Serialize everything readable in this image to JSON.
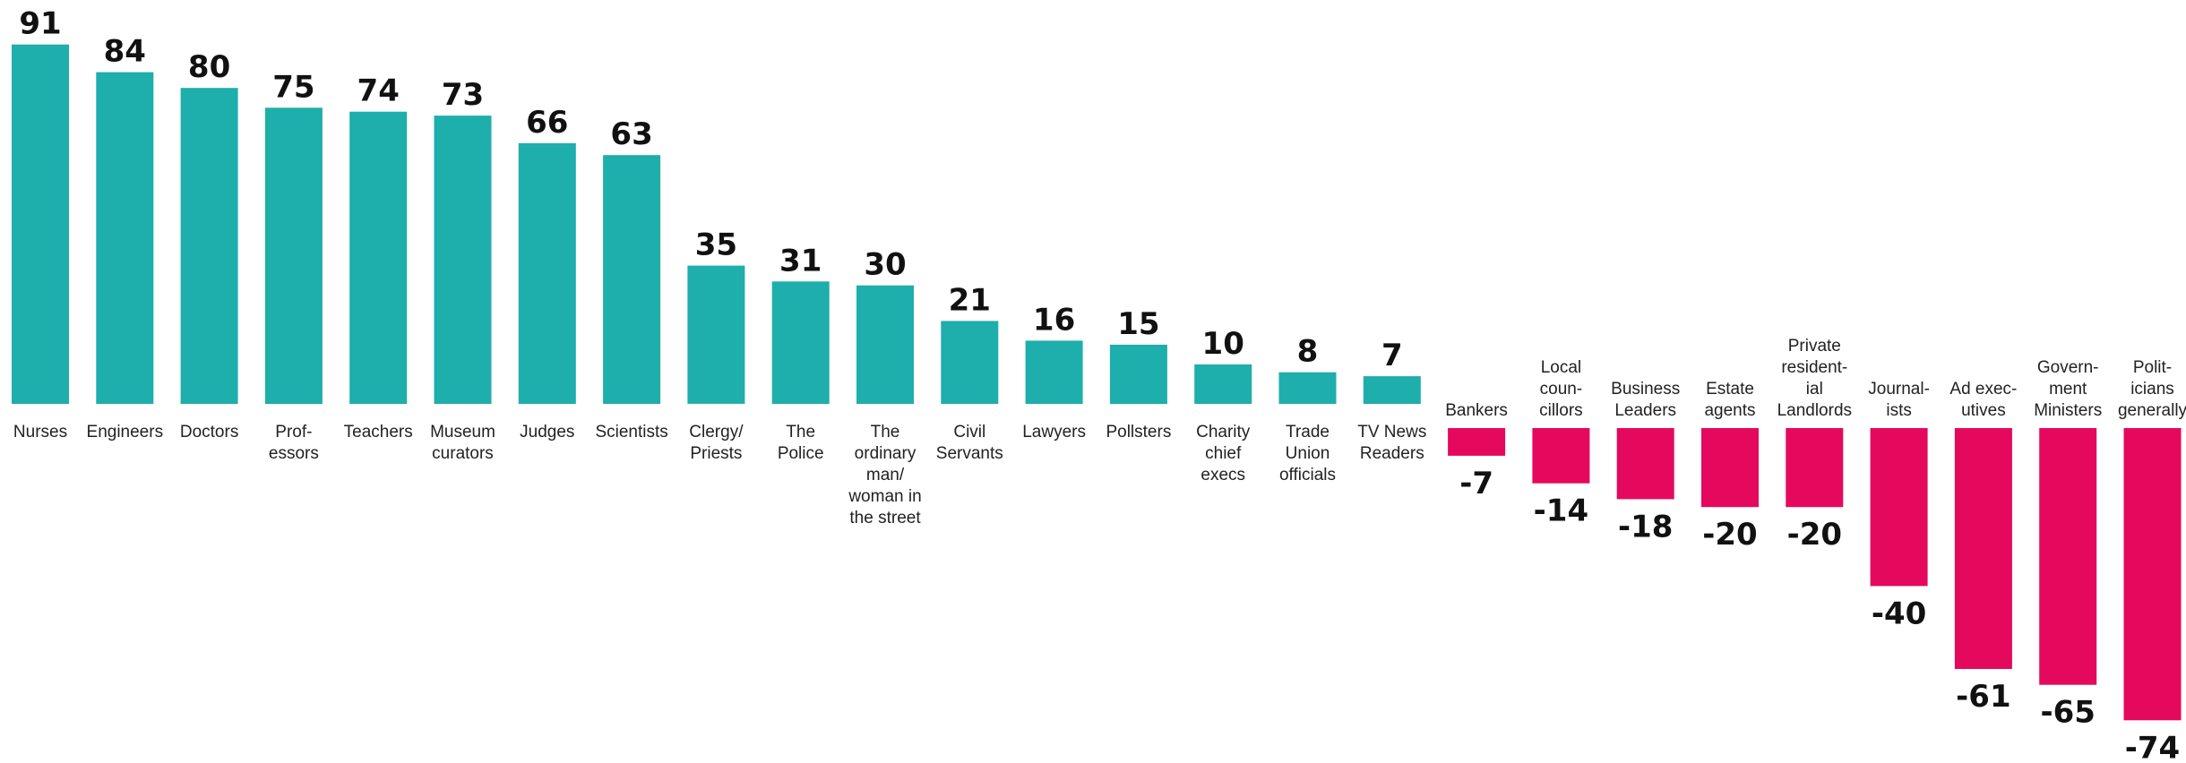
{
  "chart_data": {
    "type": "bar",
    "categories": [
      [
        "Nurses"
      ],
      [
        "Engineers"
      ],
      [
        "Doctors"
      ],
      [
        "Prof-",
        "essors"
      ],
      [
        "Teachers"
      ],
      [
        "Museum",
        "curators"
      ],
      [
        "Judges"
      ],
      [
        "Scientists"
      ],
      [
        "Clergy/",
        "Priests"
      ],
      [
        "The",
        "Police"
      ],
      [
        "The",
        "ordinary",
        "man/",
        "woman in",
        "the street"
      ],
      [
        "Civil",
        "Servants"
      ],
      [
        "Lawyers"
      ],
      [
        "Pollsters"
      ],
      [
        "Charity",
        "chief",
        "execs"
      ],
      [
        "Trade",
        "Union",
        "officials"
      ],
      [
        "TV News",
        "Readers"
      ],
      [
        "Bankers"
      ],
      [
        "Local",
        "coun-",
        "cillors"
      ],
      [
        "Business",
        "Leaders"
      ],
      [
        "Estate",
        "agents"
      ],
      [
        "Private",
        "resident-",
        "ial",
        "Landlords"
      ],
      [
        "Journal-",
        "ists"
      ],
      [
        "Ad exec-",
        "utives"
      ],
      [
        "Govern-",
        "ment",
        "Ministers"
      ],
      [
        "Polit-",
        "icians",
        "generally"
      ]
    ],
    "values": [
      91,
      84,
      80,
      75,
      74,
      73,
      66,
      63,
      35,
      31,
      30,
      21,
      16,
      15,
      10,
      8,
      7,
      -7,
      -14,
      -18,
      -20,
      -20,
      -40,
      -61,
      -65,
      -74
    ],
    "value_labels": [
      "91",
      "84",
      "80",
      "75",
      "74",
      "73",
      "66",
      "63",
      "35",
      "31",
      "30",
      "21",
      "16",
      "15",
      "10",
      "8",
      "7",
      "-7",
      "-14",
      "-18",
      "-20",
      "-20",
      "-40",
      "-61",
      "-65",
      "-74"
    ],
    "title": "",
    "xlabel": "",
    "ylabel": "",
    "grid": false,
    "legend": "none",
    "colors": {
      "positive": "#1EAEAC",
      "negative": "#E5095D"
    }
  }
}
